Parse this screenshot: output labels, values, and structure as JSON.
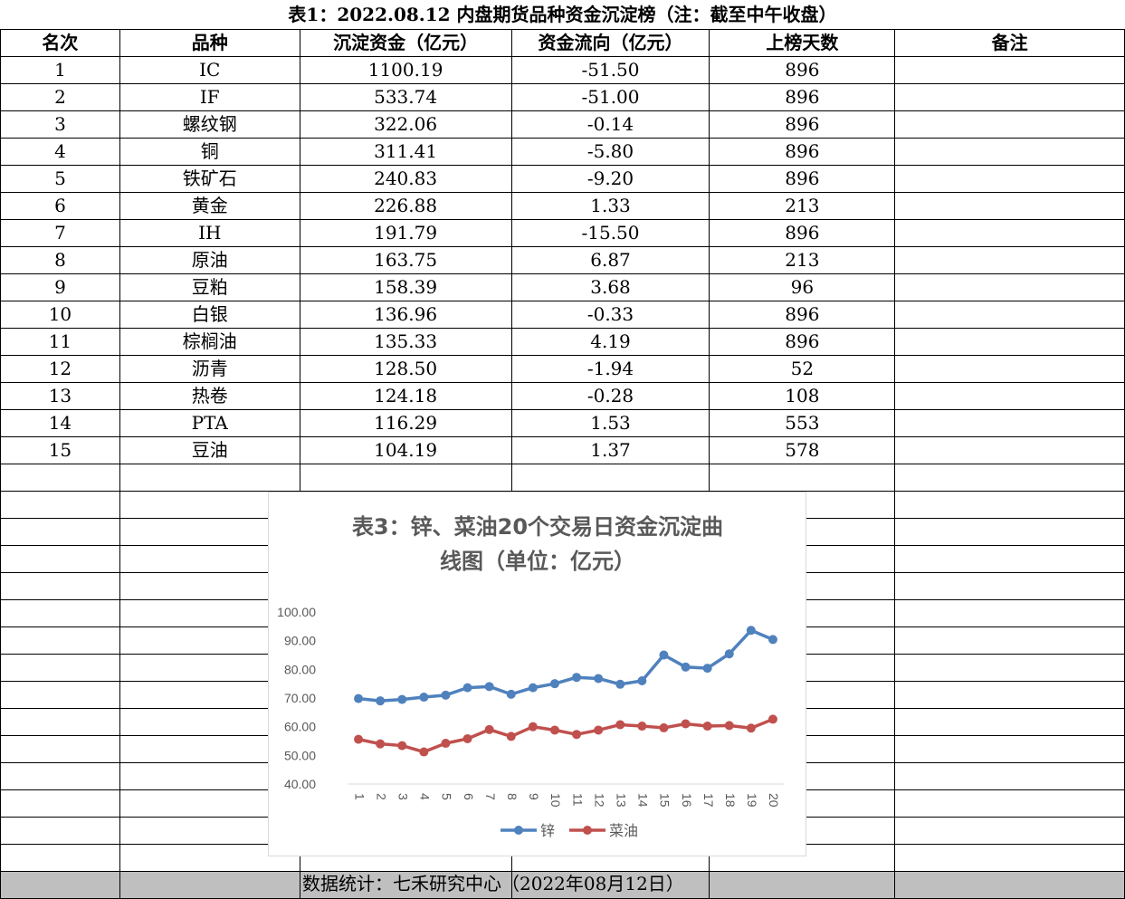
{
  "title": "表1：2022.08.12 内盘期货品种资金沉淀榜（注：截至中午收盘）",
  "headers": [
    "名次",
    "品种",
    "沉淀资金（亿元）",
    "资金流向（亿元）",
    "上榜天数",
    "备注"
  ],
  "rows": [
    [
      "1",
      "IC",
      "1100.19",
      "-51.50",
      "896",
      ""
    ],
    [
      "2",
      "IF",
      "533.74",
      "-51.00",
      "896",
      ""
    ],
    [
      "3",
      "螺纹钢",
      "322.06",
      "-0.14",
      "896",
      ""
    ],
    [
      "4",
      "铜",
      "311.41",
      "-5.80",
      "896",
      ""
    ],
    [
      "5",
      "铁矿石",
      "240.83",
      "-9.20",
      "896",
      ""
    ],
    [
      "6",
      "黄金",
      "226.88",
      "1.33",
      "213",
      ""
    ],
    [
      "7",
      "IH",
      "191.79",
      "-15.50",
      "896",
      ""
    ],
    [
      "8",
      "原油",
      "163.75",
      "6.87",
      "213",
      ""
    ],
    [
      "9",
      "豆粕",
      "158.39",
      "3.68",
      "96",
      ""
    ],
    [
      "10",
      "白银",
      "136.96",
      "-0.33",
      "896",
      ""
    ],
    [
      "11",
      "棕榈油",
      "135.33",
      "4.19",
      "896",
      ""
    ],
    [
      "12",
      "沥青",
      "128.50",
      "-1.94",
      "52",
      ""
    ],
    [
      "13",
      "热卷",
      "124.18",
      "-0.28",
      "108",
      ""
    ],
    [
      "14",
      "PTA",
      "116.29",
      "1.53",
      "553",
      ""
    ],
    [
      "15",
      "豆油",
      "104.19",
      "1.37",
      "578",
      ""
    ]
  ],
  "footer": "数据统计：七禾研究中心（2022年08月12日）",
  "chart_data": {
    "type": "line",
    "title": "表3：锌、菜油20个交易日资金沉淀曲线图（单位：亿元）",
    "title_lines": [
      "表3：锌、菜油20个交易日资金沉淀曲",
      "线图（单位：亿元）"
    ],
    "x": [
      "1",
      "2",
      "3",
      "4",
      "5",
      "6",
      "7",
      "8",
      "9",
      "10",
      "11",
      "12",
      "13",
      "14",
      "15",
      "16",
      "17",
      "18",
      "19",
      "20"
    ],
    "ylim": [
      40,
      100
    ],
    "yticks": [
      "100.00",
      "90.00",
      "80.00",
      "70.00",
      "60.00",
      "50.00",
      "40.00"
    ],
    "grid": false,
    "legend": "bottom",
    "series": [
      {
        "name": "锌",
        "color": "#4f81bd",
        "values": [
          69.8,
          69.0,
          69.5,
          70.3,
          71.0,
          73.6,
          74.0,
          71.3,
          73.6,
          75.0,
          77.2,
          76.8,
          74.8,
          76.0,
          85.0,
          80.8,
          80.4,
          85.4,
          93.6,
          90.4
        ]
      },
      {
        "name": "菜油",
        "color": "#c0504d",
        "values": [
          55.6,
          54.0,
          53.4,
          51.2,
          54.2,
          55.8,
          59.0,
          56.6,
          60.0,
          58.8,
          57.3,
          58.8,
          60.7,
          60.2,
          59.6,
          61.0,
          60.2,
          60.4,
          59.5,
          62.6
        ]
      }
    ]
  }
}
